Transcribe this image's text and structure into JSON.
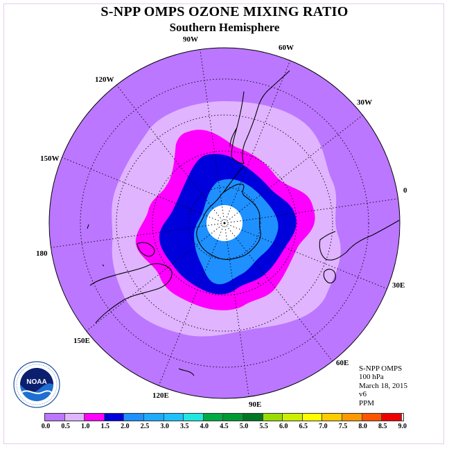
{
  "header": {
    "title": "S-NPP OMPS OZONE MIXING RATIO",
    "subtitle": "Southern Hemisphere"
  },
  "map": {
    "projection": "south-polar-stereographic",
    "longitude_labels": [
      "90W",
      "60W",
      "30W",
      "0",
      "30E",
      "60E",
      "90E",
      "120E",
      "150E",
      "180",
      "150W",
      "120W"
    ],
    "fill_colors": {
      "outer": "#bb77ff",
      "band1": "#e0b4ff",
      "band2": "#ff00ff",
      "band3": "#0000dd",
      "band4": "#1e90ff",
      "pole": "#ffffff"
    }
  },
  "logo": {
    "name": "NOAA",
    "ring_text": "NATIONAL OCEANIC AND ATMOSPHERIC ADMINISTRATION · U.S. DEPARTMENT OF COMMERCE"
  },
  "info": {
    "instrument": "S-NPP OMPS",
    "level": "100 hPa",
    "date": "March 18, 2015",
    "version": "v6",
    "units": "PPM"
  },
  "colorbar": {
    "ticks": [
      "0.0",
      "0.5",
      "1.0",
      "1.5",
      "2.0",
      "2.5",
      "3.0",
      "3.5",
      "4.0",
      "4.5",
      "5.0",
      "5.5",
      "6.0",
      "6.5",
      "7.0",
      "7.5",
      "8.0",
      "8.5",
      "9.0"
    ],
    "colors": [
      "#bb77ff",
      "#e0b4ff",
      "#ff00ff",
      "#0000dd",
      "#1e90ff",
      "#1eaaff",
      "#20c0ff",
      "#20e8e0",
      "#00aa44",
      "#009933",
      "#007722",
      "#99dd00",
      "#ccee00",
      "#ffff00",
      "#ffcc00",
      "#ff9900",
      "#ff5500",
      "#ee0000",
      "#996633"
    ]
  }
}
